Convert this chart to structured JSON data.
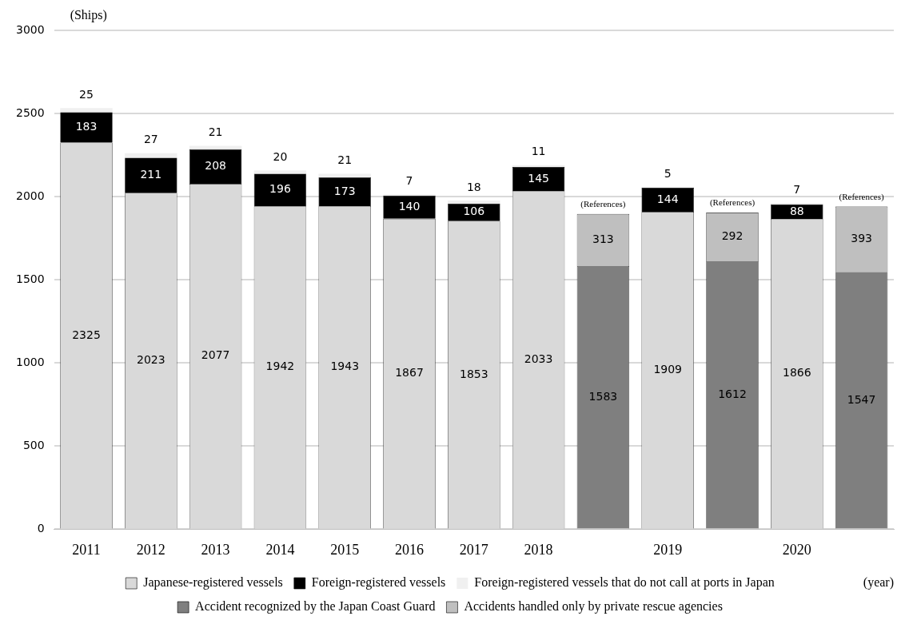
{
  "chart_data": {
    "type": "bar",
    "stacked": true,
    "ylabel": "(Ships)",
    "xlabel": "(year)",
    "categories": [
      "2011",
      "2012",
      "2013",
      "2014",
      "2015",
      "2016",
      "2017",
      "2018",
      null,
      "2019",
      null,
      "2020",
      null
    ],
    "series": [
      {
        "name": "Japanese-registered vessels",
        "color": "#d9d9d9",
        "values": [
          2325,
          2023,
          2077,
          1942,
          1943,
          1867,
          1853,
          2033,
          null,
          1909,
          null,
          1866,
          null
        ]
      },
      {
        "name": "Foreign-registered vessels",
        "color": "#000000",
        "values": [
          183,
          211,
          208,
          196,
          173,
          140,
          106,
          145,
          null,
          144,
          null,
          88,
          null
        ]
      },
      {
        "name": "Foreign-registered vessels that do not call at ports in Japan",
        "color": "#f0f0f0",
        "values": [
          25,
          27,
          21,
          20,
          21,
          7,
          18,
          11,
          null,
          5,
          null,
          7,
          null
        ]
      },
      {
        "name": "Accident recognized by the Japan Coast Guard",
        "color": "#7f7f7f",
        "values": [
          null,
          null,
          null,
          null,
          null,
          null,
          null,
          null,
          1583,
          null,
          1612,
          null,
          1547
        ]
      },
      {
        "name": "Accidents handled only by private rescue agencies",
        "color": "#bfbfbf",
        "values": [
          null,
          null,
          null,
          null,
          null,
          null,
          null,
          null,
          313,
          null,
          292,
          null,
          393
        ]
      }
    ],
    "totals": [
      null,
      null,
      null,
      null,
      null,
      null,
      null,
      null,
      "(References)",
      null,
      "(References)",
      null,
      "(References)"
    ],
    "data_labels": true,
    "ylim": [
      0,
      3000
    ],
    "yticks": [
      0,
      500,
      1000,
      1500,
      2000,
      2500,
      3000
    ],
    "grid": "y",
    "legend": "bottom"
  }
}
